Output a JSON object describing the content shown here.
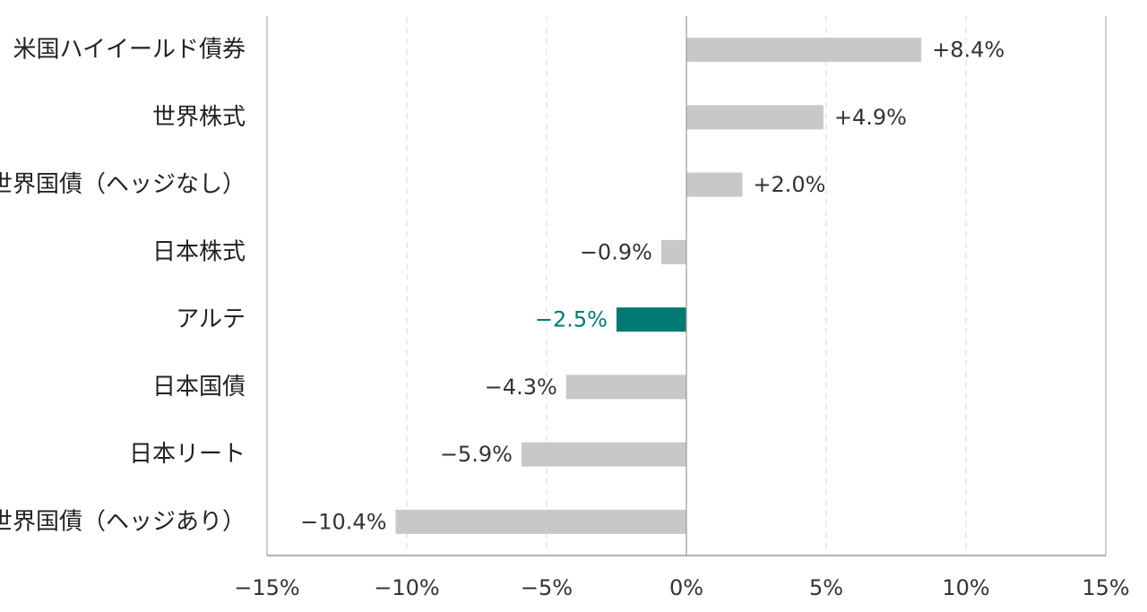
{
  "chart_data": {
    "type": "bar",
    "orientation": "horizontal",
    "title": "",
    "xlabel": "",
    "ylabel": "",
    "xlim": [
      -15,
      15
    ],
    "grid": "vertical dashed",
    "categories": [
      "米国ハイイールド債券",
      "世界株式",
      "世界国債（ヘッジなし）",
      "日本株式",
      "アルテ",
      "日本国債",
      "日本リート",
      "世界国債（ヘッジあり）"
    ],
    "values": [
      8.4,
      4.9,
      2.0,
      -0.9,
      -2.5,
      -4.3,
      -5.9,
      -10.4
    ],
    "value_labels": [
      "+8.4%",
      "+4.9%",
      "+2.0%",
      "−0.9%",
      "−2.5%",
      "−4.3%",
      "−5.9%",
      "−10.4%"
    ],
    "highlight_category": "アルテ",
    "x_ticks": [
      -15,
      -10,
      -5,
      0,
      5,
      10,
      15
    ],
    "x_tick_labels": [
      "−15%",
      "−10%",
      "−5%",
      "0%",
      "5%",
      "10%",
      "15%"
    ],
    "colors": {
      "bar": "#c8c8c8",
      "highlight": "#007a73",
      "text": "#333333",
      "axis": "#999999",
      "grid": "#d9d9d9"
    }
  }
}
